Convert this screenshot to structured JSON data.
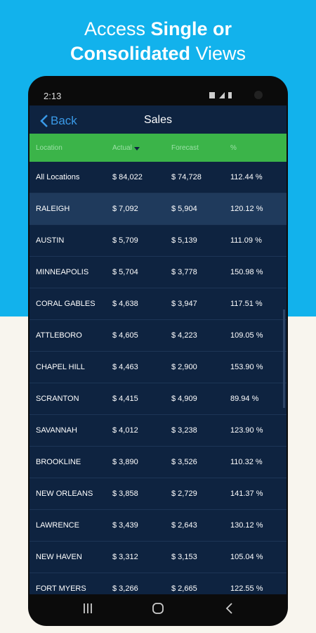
{
  "headline": {
    "line1": [
      "Access ",
      "Single or"
    ],
    "line2": [
      "Consolidated",
      " Views"
    ]
  },
  "status_bar": {
    "time": "2:13"
  },
  "nav": {
    "back": "Back",
    "title": "Sales"
  },
  "table": {
    "header": [
      "Location",
      "Actual",
      "Forecast",
      "%"
    ],
    "rows": [
      [
        "All Locations",
        "$ 84,022",
        "$ 74,728",
        "112.44 %"
      ],
      [
        "RALEIGH",
        "$ 7,092",
        "$ 5,904",
        "120.12 %"
      ],
      [
        "AUSTIN",
        "$ 5,709",
        "$ 5,139",
        "111.09 %"
      ],
      [
        "MINNEAPOLIS",
        "$ 5,704",
        "$ 3,778",
        "150.98 %"
      ],
      [
        "CORAL GABLES",
        "$ 4,638",
        "$ 3,947",
        "117.51 %"
      ],
      [
        "ATTLEBORO",
        "$ 4,605",
        "$ 4,223",
        "109.05 %"
      ],
      [
        "CHAPEL HILL",
        "$ 4,463",
        "$ 2,900",
        "153.90 %"
      ],
      [
        "SCRANTON",
        "$ 4,415",
        "$ 4,909",
        "89.94 %"
      ],
      [
        "SAVANNAH",
        "$ 4,012",
        "$ 3,238",
        "123.90 %"
      ],
      [
        "BROOKLINE",
        "$ 3,890",
        "$ 3,526",
        "110.32 %"
      ],
      [
        "NEW ORLEANS",
        "$ 3,858",
        "$ 2,729",
        "141.37 %"
      ],
      [
        "LAWRENCE",
        "$ 3,439",
        "$ 2,643",
        "130.12 %"
      ],
      [
        "NEW HAVEN",
        "$ 3,312",
        "$ 3,153",
        "105.04 %"
      ],
      [
        "FORT MYERS",
        "$ 3,266",
        "$ 2,665",
        "122.55 %"
      ]
    ]
  }
}
